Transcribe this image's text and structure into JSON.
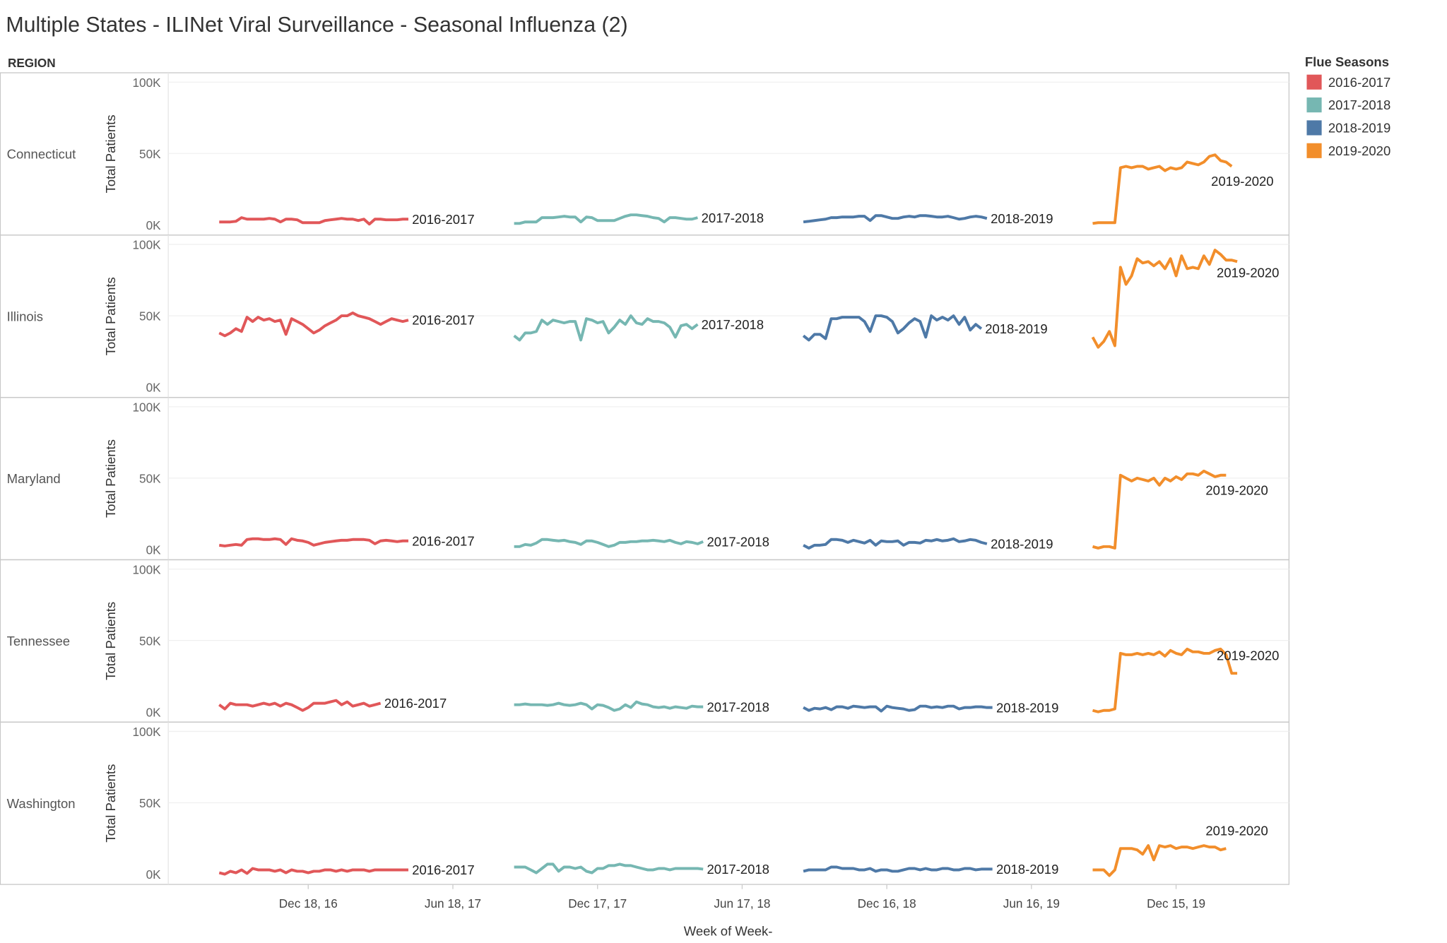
{
  "chart_data": {
    "type": "line",
    "title": "Multiple States - ILINet Viral Surveillance - Seasonal Influenza (2)",
    "row_header": "REGION",
    "xlabel": "Week of Week-",
    "ylabel": "Total Patients",
    "ylim": [
      0,
      100000
    ],
    "y_ticks": [
      {
        "v": 0,
        "label": "0K"
      },
      {
        "v": 50,
        "label": "50K"
      },
      {
        "v": 100,
        "label": "100K"
      }
    ],
    "x_ticks": [
      {
        "date": "2016-12-18",
        "label": "Dec 18, 16"
      },
      {
        "date": "2017-06-18",
        "label": "Jun 18, 17"
      },
      {
        "date": "2017-12-17",
        "label": "Dec 17, 17"
      },
      {
        "date": "2018-06-17",
        "label": "Jun 17, 18"
      },
      {
        "date": "2018-12-16",
        "label": "Dec 16, 18"
      },
      {
        "date": "2019-06-16",
        "label": "Jun 16, 19"
      },
      {
        "date": "2019-12-15",
        "label": "Dec 15, 19"
      }
    ],
    "legend": {
      "title": "Flue Seasons",
      "placement": "right",
      "items": [
        {
          "label": "2016-2017",
          "color": "#e15759"
        },
        {
          "label": "2017-2018",
          "color": "#76b7b2"
        },
        {
          "label": "2018-2019",
          "color": "#4e79a7"
        },
        {
          "label": "2019-2020",
          "color": "#f28e2b"
        }
      ]
    },
    "value_unit": "thousands of patients, weekly",
    "season_starts": [
      "2016-08-28",
      "2017-09-03",
      "2018-09-02",
      "2019-09-01"
    ],
    "panels": [
      {
        "region": "Connecticut",
        "series": [
          [
            2,
            2,
            2,
            2.5,
            5,
            4,
            4,
            4,
            4,
            4.5,
            4,
            2,
            4,
            4,
            3.5,
            1.5,
            1.5,
            1.5,
            1.5,
            3,
            3.5,
            4,
            4.5,
            4,
            4,
            3,
            4,
            0.5,
            4,
            4,
            3.5,
            3.5,
            3.5,
            4,
            4
          ],
          [
            1,
            1,
            2,
            2,
            2,
            5,
            5,
            5,
            5.5,
            6,
            5.5,
            5.5,
            2,
            5.5,
            5,
            3,
            3,
            3,
            3,
            4.5,
            6,
            7,
            7,
            6.5,
            6,
            5,
            4.5,
            2,
            5,
            5,
            4.5,
            4,
            4,
            5
          ],
          [
            2,
            2.5,
            3,
            3.5,
            4,
            5,
            5,
            5.5,
            5.5,
            5.5,
            6,
            6,
            3,
            6.5,
            6.5,
            5.5,
            4.5,
            4.5,
            5.5,
            6,
            5.5,
            6.5,
            6.5,
            6,
            5.5,
            5.5,
            6,
            5,
            4,
            4.5,
            5.5,
            6,
            5.5,
            4.5
          ],
          [
            1,
            1.5,
            1.5,
            1.5,
            1.5,
            40,
            41,
            40,
            41,
            41,
            39,
            40,
            41,
            38,
            40,
            39,
            40,
            44,
            43,
            42,
            44,
            48,
            49,
            45,
            44,
            41
          ]
        ]
      },
      {
        "region": "Illinois",
        "series": [
          [
            38,
            36,
            38,
            41,
            39,
            49,
            46,
            49,
            47,
            48,
            46,
            47,
            37,
            48,
            46,
            44,
            41,
            38,
            40,
            43,
            45,
            47,
            50,
            50,
            52,
            50,
            49,
            48,
            46,
            44,
            46,
            48,
            47,
            46,
            47
          ],
          [
            36,
            33,
            38,
            38,
            39,
            47,
            44,
            47,
            46,
            45,
            46,
            46,
            33,
            48,
            47,
            45,
            46,
            38,
            42,
            47,
            44,
            50,
            45,
            44,
            48,
            46,
            46,
            45,
            42,
            35,
            43,
            44,
            41,
            44
          ],
          [
            36,
            33,
            37,
            37,
            34,
            48,
            48,
            49,
            49,
            49,
            49,
            46,
            39,
            50,
            50,
            49,
            46,
            38,
            41,
            45,
            48,
            46,
            35,
            50,
            47,
            49,
            47,
            50,
            44,
            49,
            40,
            44,
            41
          ],
          [
            35,
            28,
            32,
            39,
            29,
            84,
            72,
            78,
            90,
            87,
            88,
            85,
            88,
            83,
            90,
            78,
            92,
            83,
            84,
            83,
            92,
            86,
            96,
            93,
            89,
            89,
            88
          ]
        ]
      },
      {
        "region": "Maryland",
        "series": [
          [
            3,
            2.5,
            3,
            3.5,
            3,
            7,
            7.5,
            7.5,
            7,
            7,
            7.5,
            7,
            3.5,
            7.5,
            6.5,
            6,
            5,
            3,
            4,
            5,
            5.5,
            6,
            6.5,
            6.5,
            7,
            7,
            7,
            6.5,
            4,
            6,
            6.5,
            6,
            5.5,
            6,
            6
          ],
          [
            2,
            2,
            3.5,
            3,
            4.5,
            7,
            7,
            6.5,
            6,
            6.5,
            5.5,
            5,
            3.5,
            6,
            6,
            5,
            3.5,
            2,
            3,
            5,
            5,
            5.5,
            5.5,
            6,
            6,
            6.5,
            6,
            5.5,
            6.5,
            5,
            4,
            5.5,
            5,
            4,
            5.5
          ],
          [
            3,
            1,
            3,
            3,
            3.5,
            7,
            7,
            6.5,
            5,
            6.5,
            5.5,
            4.5,
            6.5,
            3,
            6,
            5.5,
            5.5,
            6,
            3,
            5,
            5,
            4.5,
            6.5,
            6,
            7,
            6,
            6.5,
            7.5,
            5.5,
            6,
            7,
            6.5,
            5,
            4
          ],
          [
            2,
            1,
            2,
            2,
            1,
            52,
            50,
            48,
            50,
            49,
            48,
            50,
            45,
            50,
            48,
            51,
            49,
            53,
            53,
            52,
            55,
            53,
            51,
            52,
            52
          ]
        ]
      },
      {
        "region": "Tennessee",
        "series": [
          [
            5,
            2,
            6,
            5,
            5,
            5,
            4,
            5,
            6,
            5,
            6,
            4,
            6,
            5,
            3,
            1,
            3,
            6,
            6,
            6,
            7,
            8,
            5,
            7,
            4,
            5,
            6,
            4,
            5,
            6
          ],
          [
            5,
            5,
            5.5,
            5,
            5,
            5,
            4.5,
            5,
            6,
            5,
            4.5,
            5,
            6,
            5,
            2,
            5,
            4.5,
            3,
            1,
            2,
            5,
            3,
            7,
            5.5,
            5,
            3.5,
            3,
            3.5,
            2.5,
            3.5,
            3,
            2.5,
            4,
            3.5,
            3.5
          ],
          [
            3,
            1,
            2.5,
            2,
            3,
            1.5,
            3.5,
            3.5,
            2.5,
            4,
            3.5,
            3,
            3.5,
            3.5,
            0.5,
            4,
            3,
            2.5,
            2,
            1,
            1.5,
            4,
            4,
            3,
            3.5,
            3,
            4,
            4,
            2,
            3,
            3,
            3.5,
            3.5,
            3,
            3
          ],
          [
            1,
            0,
            1,
            1,
            2,
            41,
            40,
            40,
            41,
            40,
            41,
            40,
            42,
            39,
            43,
            41,
            40,
            44,
            42,
            42,
            41,
            41,
            43,
            44,
            40,
            27,
            27
          ]
        ]
      },
      {
        "region": "Washington",
        "series": [
          [
            1,
            0,
            2,
            1,
            3,
            0.5,
            4,
            3,
            3,
            3,
            2,
            3,
            1,
            3,
            2,
            2,
            1,
            2,
            2,
            3,
            3,
            2,
            3,
            2,
            3,
            3,
            3,
            2,
            3,
            3,
            3,
            3,
            3,
            3,
            3
          ],
          [
            5,
            5,
            5,
            3,
            1,
            4,
            7,
            7,
            2,
            5,
            5,
            4,
            5,
            2,
            1,
            4,
            4,
            6,
            6,
            7,
            6,
            6,
            5,
            4,
            3,
            3,
            4,
            4,
            3,
            4,
            4,
            4,
            4,
            4,
            3.5
          ],
          [
            2,
            3,
            3,
            3,
            3,
            5,
            5,
            4,
            4,
            4,
            3,
            3,
            4,
            2,
            3,
            3,
            2,
            2,
            3,
            4,
            4,
            3,
            4,
            3,
            3,
            4,
            4,
            3,
            3,
            4,
            4,
            3,
            3.5,
            3.5,
            3.5
          ],
          [
            3,
            3,
            3,
            -1,
            3,
            18,
            18,
            18,
            17,
            14,
            20,
            10,
            20,
            19,
            20,
            18,
            19,
            19,
            18,
            19,
            20,
            19,
            19,
            17,
            18
          ]
        ]
      }
    ]
  }
}
